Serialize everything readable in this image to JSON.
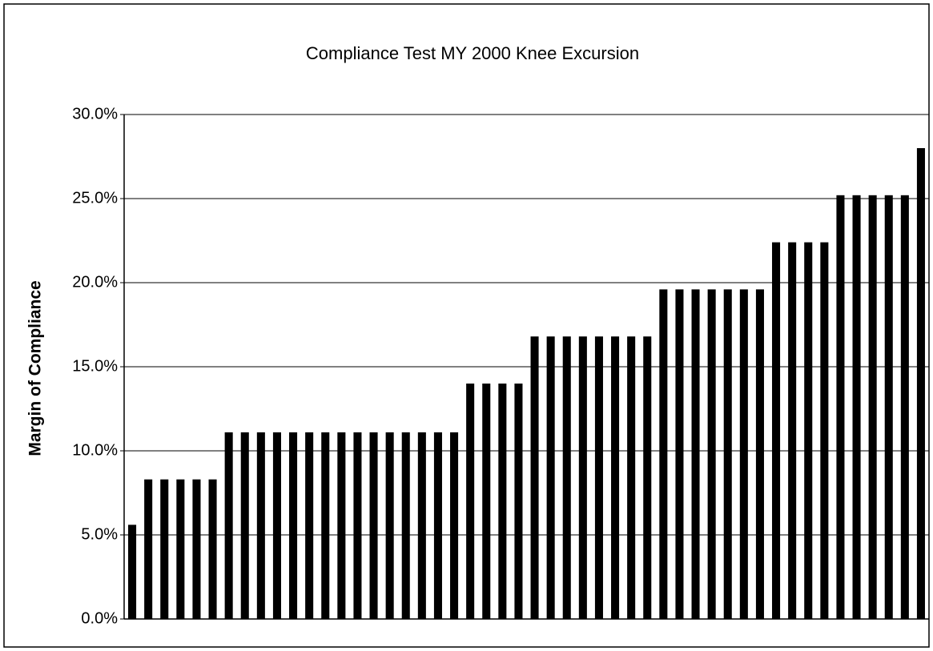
{
  "chart_data": {
    "type": "bar",
    "title": "Compliance Test MY 2000 Knee Excursion",
    "y_label": "Margin of Compliance",
    "categories": [
      null,
      null,
      null,
      null,
      null,
      null,
      null,
      null,
      null,
      null,
      null,
      null,
      null,
      null,
      null,
      null,
      null,
      null,
      null,
      null,
      null,
      null,
      null,
      null,
      null,
      null,
      null,
      null,
      null,
      null,
      null,
      null,
      null,
      null,
      null,
      null,
      null,
      null,
      null,
      null,
      null,
      null,
      null,
      null,
      null,
      null,
      null,
      null,
      null,
      null
    ],
    "values": [
      5.6,
      8.3,
      8.3,
      8.3,
      8.3,
      8.3,
      11.1,
      11.1,
      11.1,
      11.1,
      11.1,
      11.1,
      11.1,
      11.1,
      11.1,
      11.1,
      11.1,
      11.1,
      11.1,
      11.1,
      11.1,
      14.0,
      14.0,
      14.0,
      14.0,
      16.8,
      16.8,
      16.8,
      16.8,
      16.8,
      16.8,
      16.8,
      16.8,
      19.6,
      19.6,
      19.6,
      19.6,
      19.6,
      19.6,
      19.6,
      22.4,
      22.4,
      22.4,
      22.4,
      25.2,
      25.2,
      25.2,
      25.2,
      25.2,
      28.0
    ],
    "color": "#000000",
    "ylim": [
      0,
      30
    ],
    "yticks": [
      {
        "value": 0,
        "label": "0.0%"
      },
      {
        "value": 5,
        "label": "5.0%"
      },
      {
        "value": 10,
        "label": "10.0%"
      },
      {
        "value": 15,
        "label": "15.0%"
      },
      {
        "value": 20,
        "label": "20.0%"
      },
      {
        "value": 25,
        "label": "25.0%"
      },
      {
        "value": 30,
        "label": "30.0%"
      }
    ],
    "grid": true
  }
}
